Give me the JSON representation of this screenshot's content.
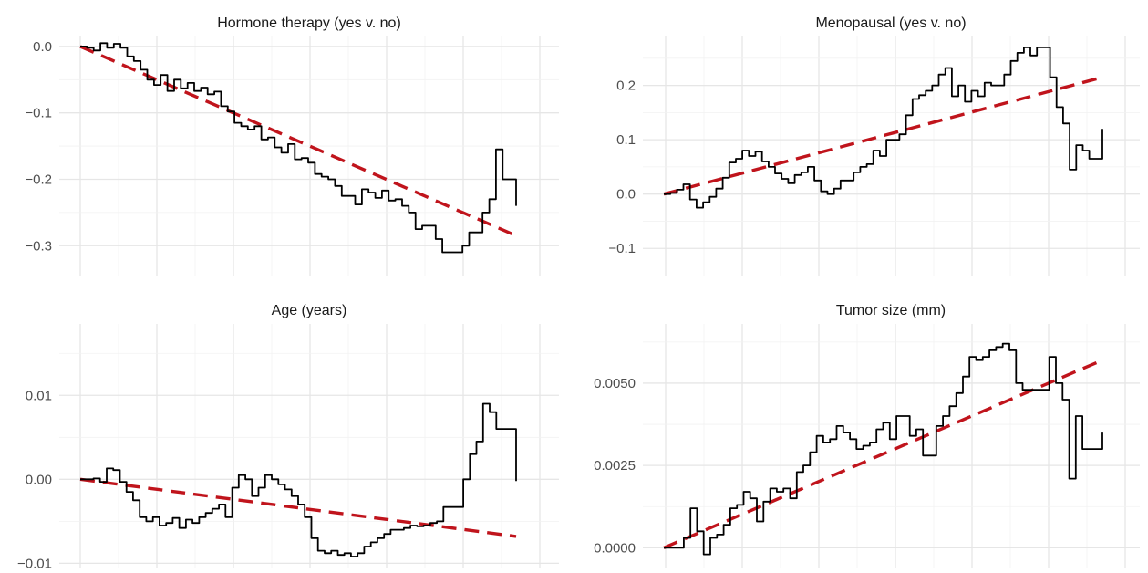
{
  "colors": {
    "observed": "#000000",
    "fit": "#c0141c",
    "grid": "#e6e6e6"
  },
  "chart_data": [
    {
      "type": "line",
      "title": "Hormone therapy (yes v. no)",
      "ylim": [
        -0.345,
        0.015
      ],
      "ytick_values": [
        0.0,
        -0.1,
        -0.2,
        -0.3
      ],
      "yticks": [
        "0.0",
        "−0.1",
        "−0.2",
        "−0.3"
      ],
      "grid": true,
      "series": [
        {
          "role": "observed",
          "style": "solid",
          "values": [
            0,
            -0.002,
            -0.006,
            0.005,
            -0.002,
            0.004,
            -0.002,
            -0.015,
            -0.022,
            -0.035,
            -0.05,
            -0.058,
            -0.043,
            -0.067,
            -0.05,
            -0.063,
            -0.055,
            -0.067,
            -0.062,
            -0.072,
            -0.068,
            -0.09,
            -0.098,
            -0.115,
            -0.12,
            -0.125,
            -0.12,
            -0.14,
            -0.137,
            -0.152,
            -0.16,
            -0.147,
            -0.17,
            -0.168,
            -0.175,
            -0.192,
            -0.196,
            -0.2,
            -0.21,
            -0.225,
            -0.225,
            -0.238,
            -0.215,
            -0.22,
            -0.228,
            -0.217,
            -0.232,
            -0.23,
            -0.24,
            -0.25,
            -0.275,
            -0.27,
            -0.27,
            -0.29,
            -0.31,
            -0.31,
            -0.31,
            -0.3,
            -0.28,
            -0.28,
            -0.25,
            -0.23,
            -0.155,
            -0.2,
            -0.2,
            -0.24
          ]
        },
        {
          "role": "fit",
          "style": "dashed",
          "values": [
            0,
            -0.285
          ]
        }
      ]
    },
    {
      "type": "line",
      "title": "Menopausal (yes v. no)",
      "ylim": [
        -0.15,
        0.29
      ],
      "ytick_values": [
        0.2,
        0.1,
        0.0,
        -0.1
      ],
      "yticks": [
        "0.2",
        "0.1",
        "0.0",
        "−0.1"
      ],
      "grid": true,
      "series": [
        {
          "role": "observed",
          "style": "solid",
          "values": [
            0,
            0.002,
            0.008,
            0.018,
            -0.01,
            -0.025,
            -0.015,
            -0.005,
            0.01,
            0.03,
            0.058,
            0.065,
            0.08,
            0.07,
            0.078,
            0.06,
            0.05,
            0.038,
            0.028,
            0.02,
            0.035,
            0.04,
            0.05,
            0.025,
            0.005,
            0,
            0.01,
            0.025,
            0.025,
            0.04,
            0.05,
            0.055,
            0.08,
            0.07,
            0.1,
            0.1,
            0.11,
            0.145,
            0.175,
            0.182,
            0.19,
            0.2,
            0.22,
            0.232,
            0.18,
            0.2,
            0.17,
            0.19,
            0.18,
            0.205,
            0.2,
            0.2,
            0.22,
            0.245,
            0.26,
            0.27,
            0.255,
            0.27,
            0.27,
            0.215,
            0.16,
            0.13,
            0.045,
            0.09,
            0.08,
            0.065,
            0.065,
            0.12
          ]
        },
        {
          "role": "fit",
          "style": "dashed",
          "values": [
            0,
            0.215
          ]
        }
      ]
    },
    {
      "type": "line",
      "title": "Age (years)",
      "ylim": [
        -0.0105,
        0.0185
      ],
      "ytick_values": [
        0.01,
        0.0,
        -0.01
      ],
      "yticks": [
        "0.01",
        "0.00",
        "−0.01"
      ],
      "grid": true,
      "series": [
        {
          "role": "observed",
          "style": "solid",
          "values": [
            0,
            0,
            0.0001,
            -0.0003,
            0.0013,
            0.0011,
            -0.0003,
            -0.0015,
            -0.0025,
            -0.0045,
            -0.005,
            -0.0045,
            -0.0055,
            -0.0052,
            -0.0046,
            -0.0058,
            -0.0048,
            -0.0052,
            -0.0045,
            -0.004,
            -0.0035,
            -0.003,
            -0.0045,
            -0.001,
            0.0005,
            0,
            -0.002,
            -0.001,
            0.0005,
            0,
            -0.0006,
            -0.0012,
            -0.002,
            -0.003,
            -0.0045,
            -0.007,
            -0.0085,
            -0.0088,
            -0.0085,
            -0.009,
            -0.0088,
            -0.0092,
            -0.0088,
            -0.008,
            -0.0075,
            -0.007,
            -0.0065,
            -0.006,
            -0.006,
            -0.0058,
            -0.0055,
            -0.0056,
            -0.0055,
            -0.0052,
            -0.005,
            -0.0033,
            -0.0033,
            -0.0033,
            0,
            0.003,
            0.0045,
            0.009,
            0.008,
            0.006,
            0.006,
            0.006,
            -0.0002
          ]
        },
        {
          "role": "fit",
          "style": "dashed",
          "values": [
            0,
            -0.0068
          ]
        }
      ]
    },
    {
      "type": "line",
      "title": "Tumor size (mm)",
      "ylim": [
        -0.0006,
        0.0068
      ],
      "ytick_values": [
        0.005,
        0.0025,
        0.0
      ],
      "yticks": [
        "0.0050",
        "0.0025",
        "0.0000"
      ],
      "grid": true,
      "series": [
        {
          "role": "observed",
          "style": "solid",
          "values": [
            0,
            0,
            0,
            0.0003,
            0.0012,
            0.0005,
            -0.0002,
            0.0003,
            0.0004,
            0.0007,
            0.0012,
            0.0013,
            0.0017,
            0.0015,
            0.0008,
            0.0014,
            0.0018,
            0.0017,
            0.0018,
            0.0015,
            0.0023,
            0.0025,
            0.0029,
            0.0034,
            0.0032,
            0.0033,
            0.0037,
            0.0035,
            0.0033,
            0.003,
            0.0031,
            0.0032,
            0.0036,
            0.0038,
            0.0033,
            0.004,
            0.004,
            0.0034,
            0.0036,
            0.0028,
            0.0028,
            0.0037,
            0.004,
            0.0043,
            0.0047,
            0.0052,
            0.0058,
            0.0057,
            0.0058,
            0.006,
            0.0061,
            0.0062,
            0.006,
            0.005,
            0.0048,
            0.0048,
            0.0048,
            0.0048,
            0.0058,
            0.005,
            0.0045,
            0.0021,
            0.004,
            0.003,
            0.003,
            0.003,
            0.0035
          ]
        },
        {
          "role": "fit",
          "style": "dashed",
          "values": [
            0,
            0.0057
          ]
        }
      ]
    }
  ]
}
